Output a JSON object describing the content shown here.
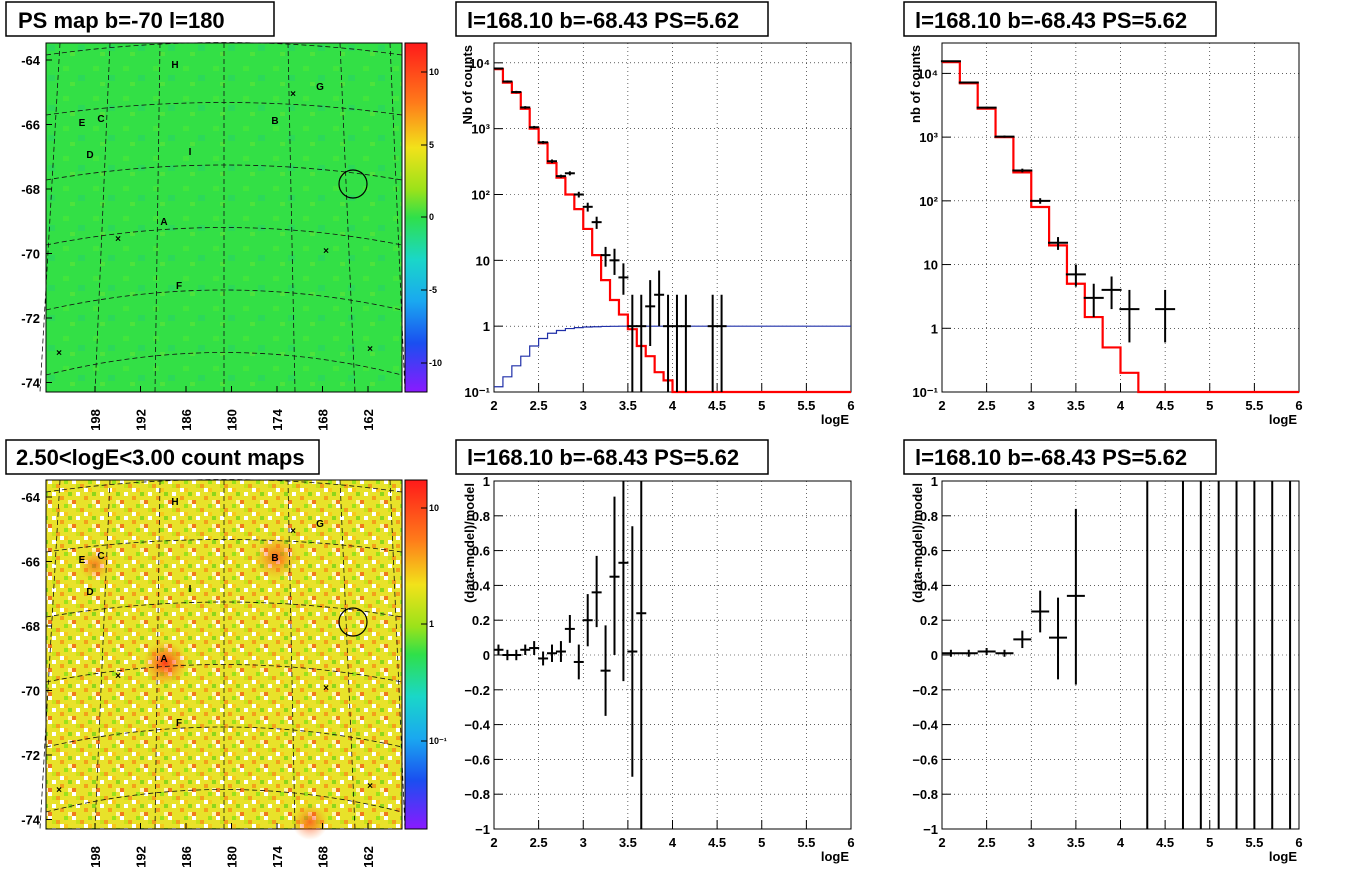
{
  "titles": {
    "ps_map": "PS map b=-70 l=180",
    "count_map": "2.50<logE<3.00 count maps",
    "spec_left": "l=168.10 b=-68.43 PS=5.62",
    "spec_right": "l=168.10 b=-68.43 PS=5.62",
    "resid_left": "l=168.10 b=-68.43 PS=5.62",
    "resid_right": "l=168.10 b=-68.43 PS=5.62"
  },
  "maps": {
    "lat_ticks": [
      "-64",
      "-66",
      "-68",
      "-70",
      "-72",
      "-74"
    ],
    "lon_ticks": [
      "198",
      "192",
      "186",
      "180",
      "174",
      "168",
      "162"
    ],
    "source_labels": [
      "H",
      "G",
      "C",
      "E",
      "B",
      "D",
      "I",
      "A",
      "F"
    ],
    "ps_colorbar_ticks": [
      "10",
      "5",
      "0",
      "-5",
      "-10"
    ],
    "count_colorbar_ticks": [
      "10",
      "1",
      "10⁻¹"
    ]
  },
  "colors": {
    "data": "#000000",
    "model": "#ff0000",
    "ratio": "#1f2fa8",
    "ps_background": "#33e046"
  },
  "chart_data": [
    {
      "type": "line",
      "name": "spectrum-left",
      "xlabel": "logE",
      "ylabel": "Nb of counts",
      "log_y": true,
      "xlim": [
        2,
        6
      ],
      "ylim": [
        0.1,
        20000
      ],
      "x_ticks": [
        "2",
        "2.5",
        "3",
        "3.5",
        "4",
        "4.5",
        "5",
        "5.5",
        "6"
      ],
      "y_ticks": [
        "10⁻¹",
        "1",
        "10",
        "10²",
        "10³",
        "10⁴"
      ],
      "grid": true,
      "model_steps": {
        "edges": [
          2.0,
          2.1,
          2.2,
          2.3,
          2.4,
          2.5,
          2.6,
          2.7,
          2.8,
          2.9,
          3.0,
          3.1,
          3.2,
          3.3,
          3.4,
          3.5,
          3.6,
          3.7,
          3.8,
          3.9,
          4.0,
          6.0
        ],
        "values": [
          8000,
          5000,
          3500,
          2000,
          1000,
          600,
          300,
          180,
          100,
          60,
          30,
          12,
          5,
          2.5,
          1.5,
          0.9,
          0.5,
          0.35,
          0.2,
          0.15,
          0.1
        ]
      },
      "ratio_steps": {
        "edges": [
          2.0,
          2.1,
          2.2,
          2.3,
          2.4,
          2.5,
          2.6,
          2.7,
          2.8,
          2.9,
          3.0,
          3.1,
          3.2,
          3.3,
          3.4,
          6.0
        ],
        "values": [
          0.12,
          0.17,
          0.25,
          0.35,
          0.5,
          0.65,
          0.78,
          0.86,
          0.92,
          0.95,
          0.97,
          0.98,
          0.99,
          0.995,
          1.0
        ]
      },
      "points": {
        "x": [
          2.05,
          2.15,
          2.25,
          2.35,
          2.45,
          2.55,
          2.65,
          2.75,
          2.85,
          2.95,
          3.05,
          3.15,
          3.25,
          3.35,
          3.45,
          3.55,
          3.65,
          3.75,
          3.85,
          3.95,
          4.05,
          4.15,
          4.45,
          4.55
        ],
        "y": [
          8200,
          5200,
          3600,
          2100,
          1050,
          620,
          320,
          190,
          210,
          100,
          65,
          38,
          12,
          10,
          5.5,
          1,
          1,
          2,
          3,
          1,
          1,
          1,
          1,
          1
        ],
        "ylo": [
          8000,
          5000,
          3450,
          2000,
          1000,
          590,
          300,
          180,
          195,
          90,
          55,
          30,
          8,
          6,
          3,
          0.1,
          0.1,
          0.5,
          1,
          0.1,
          0.1,
          0.1,
          0.1,
          0.1
        ],
        "yhi": [
          8400,
          5400,
          3750,
          2200,
          1100,
          650,
          340,
          200,
          225,
          110,
          75,
          46,
          16,
          15,
          9,
          3,
          3,
          5,
          7,
          3,
          3,
          3,
          3,
          3
        ]
      }
    },
    {
      "type": "line",
      "name": "spectrum-right",
      "xlabel": "logE",
      "ylabel": "nb of counts",
      "log_y": true,
      "xlim": [
        2,
        6
      ],
      "ylim": [
        0.1,
        30000
      ],
      "x_ticks": [
        "2",
        "2.5",
        "3",
        "3.5",
        "4",
        "4.5",
        "5",
        "5.5",
        "6"
      ],
      "y_ticks": [
        "10⁻¹",
        "1",
        "10",
        "10²",
        "10³",
        "10⁴"
      ],
      "grid": true,
      "model_steps": {
        "edges": [
          2.0,
          2.2,
          2.4,
          2.6,
          2.8,
          3.0,
          3.2,
          3.4,
          3.6,
          3.8,
          4.0,
          4.2,
          6.0
        ],
        "values": [
          15000,
          7000,
          2800,
          1000,
          280,
          80,
          20,
          5,
          1.5,
          0.5,
          0.2,
          0.1
        ]
      },
      "points": {
        "x": [
          2.1,
          2.3,
          2.5,
          2.7,
          2.9,
          3.1,
          3.3,
          3.5,
          3.7,
          3.9,
          4.1,
          4.5
        ],
        "y": [
          15500,
          7200,
          2900,
          1020,
          300,
          100,
          22,
          7,
          3,
          4,
          2,
          2
        ],
        "ylo": [
          15200,
          7000,
          2800,
          980,
          280,
          90,
          17,
          4.5,
          1.5,
          2,
          0.6,
          0.6
        ],
        "yhi": [
          15800,
          7400,
          3000,
          1060,
          320,
          110,
          27,
          10,
          5,
          6.5,
          4,
          4
        ]
      }
    },
    {
      "type": "scatter",
      "name": "residual-left",
      "xlabel": "logE",
      "ylabel": "(data-model)/model",
      "xlim": [
        2,
        6
      ],
      "ylim": [
        -1,
        1
      ],
      "x_ticks": [
        "2",
        "2.5",
        "3",
        "3.5",
        "4",
        "4.5",
        "5",
        "5.5",
        "6"
      ],
      "y_ticks": [
        "−1",
        "−0.8",
        "−0.6",
        "−0.4",
        "−0.2",
        "0",
        "0.2",
        "0.4",
        "0.6",
        "0.8",
        "1"
      ],
      "grid": true,
      "points": {
        "x": [
          2.05,
          2.15,
          2.25,
          2.35,
          2.45,
          2.55,
          2.65,
          2.75,
          2.85,
          2.95,
          3.05,
          3.15,
          3.25,
          3.35,
          3.45,
          3.55,
          3.65
        ],
        "y": [
          0.03,
          0.0,
          0.0,
          0.03,
          0.04,
          -0.02,
          0.01,
          0.02,
          0.15,
          -0.04,
          0.2,
          0.36,
          -0.09,
          0.45,
          0.53,
          0.02,
          0.24
        ],
        "ylo": [
          0.0,
          -0.03,
          -0.03,
          0.0,
          0.0,
          -0.06,
          -0.04,
          -0.04,
          0.07,
          -0.14,
          0.05,
          0.16,
          -0.35,
          0.0,
          -0.15,
          -0.7,
          -1.0
        ],
        "yhi": [
          0.06,
          0.03,
          0.03,
          0.06,
          0.08,
          0.02,
          0.06,
          0.08,
          0.23,
          0.06,
          0.35,
          0.57,
          0.17,
          0.91,
          1.0,
          0.74,
          1.0
        ]
      }
    },
    {
      "type": "scatter",
      "name": "residual-right",
      "xlabel": "logE",
      "ylabel": "(data-model)/model",
      "xlim": [
        2,
        6
      ],
      "ylim": [
        -1,
        1
      ],
      "x_ticks": [
        "2",
        "2.5",
        "3",
        "3.5",
        "4",
        "4.5",
        "5",
        "5.5",
        "6"
      ],
      "y_ticks": [
        "−1",
        "−0.8",
        "−0.6",
        "−0.4",
        "−0.2",
        "0",
        "0.2",
        "0.4",
        "0.6",
        "0.8",
        "1"
      ],
      "grid": true,
      "points": {
        "x": [
          2.1,
          2.3,
          2.5,
          2.7,
          2.9,
          3.1,
          3.3,
          3.5
        ],
        "y": [
          0.01,
          0.01,
          0.02,
          0.01,
          0.09,
          0.25,
          0.1,
          0.34
        ],
        "ylo": [
          -0.01,
          -0.01,
          0.0,
          -0.01,
          0.04,
          0.13,
          -0.14,
          -0.17
        ],
        "yhi": [
          0.03,
          0.03,
          0.04,
          0.03,
          0.14,
          0.37,
          0.33,
          0.84
        ]
      },
      "vertical_bars_x": [
        4.3,
        4.7,
        4.9,
        5.1,
        5.3,
        5.5,
        5.7,
        5.9
      ]
    }
  ]
}
